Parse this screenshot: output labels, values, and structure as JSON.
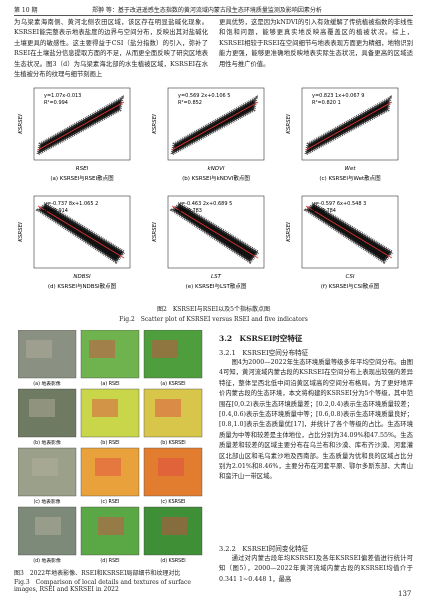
{
  "header": {
    "issue": "第 10 期",
    "title": "郑翀 等：基于改进遥感生态指数的黄河流域内蒙古段生态环境质量监测及影响因素分析"
  },
  "top": {
    "left": "为乌梁素海南侧、黄河北侧农田区域，该区存在明显盐碱化现象。KSRSEI能完整表示地表盐度的边界与空间分布，反映出其对盐碱化土壤更具的敏感性。这主要得益于CSI（盐分指数）的引入，弥补了RSEI在土壤盐分信息提取方面的不足，从而更全面反映了研究区地表生态状况。图3（d）为乌梁素海北部的水生植被区域，KSRSEI在水生植被分布的纹理与细节刻画上",
    "right": "更具优势，这是因为kNDVI的引入有效缓解了传统植被指数的非线性和饱和问题，能够更真实地反映高覆盖区的植被状况。综上，KSRSEI相较于RSEI在空间细节与地表表现方面更为精细，地物识别能力更强，能够更准确地反映地表实际生态状况，具备更高的区域适用性与推广价值。"
  },
  "figure2": {
    "y_label": "KSRSEI",
    "panels": [
      {
        "x_label": "RSEI",
        "equation": "y=1.07x-0.013",
        "r2": "R²=0.994",
        "caption": "(a) KSRSEI与RSEI散点图"
      },
      {
        "x_label": "kNDVI",
        "equation": "y=0.569 2x+0.106 5",
        "r2": "R²=0.852",
        "caption": "(b) KSRSEI与kNDVI散点图"
      },
      {
        "x_label": "Wet",
        "equation": "y=0.823 1x+0.067 9",
        "r2": "R²=0.820 1",
        "caption": "(c) KSRSEI与Wet散点图"
      },
      {
        "x_label": "NDBSI",
        "equation": "y=-0.737 8x+1.065 2",
        "r2": "R²=0.914",
        "caption": "(d) KSRSEI与NDBSI散点图"
      },
      {
        "x_label": "LST",
        "equation": "y=-0.463 2x+0.689 5",
        "r2": "R²=0.783",
        "caption": "(e) KSRSEI与LST散点图"
      },
      {
        "x_label": "CSI",
        "equation": "y=-0.597 6x+0.548 3",
        "r2": "R²=0.784",
        "caption": "(f) KSRSEI与CSI散点图"
      }
    ],
    "caption_cn": "图2　KSRSEI与RSEI以及5个指标散点图",
    "caption_en": "Fig.2　Scatter plot of KSRSEI versus RSEI and five indicators"
  },
  "figure3": {
    "labels": [
      [
        "(a) 地表影像",
        "(a) RSEI",
        "(a) KSRSEI"
      ],
      [
        "(b) 地表影像",
        "(b) RSEI",
        "(b) KSRSEI"
      ],
      [
        "(c) 地表影像",
        "(c) RSEI",
        "(c) KSRSEI"
      ],
      [
        "(d) 地表影像",
        "(d) RSEI",
        "(d) KSRSEI"
      ]
    ],
    "caption_cn": "图3　2022年地表影像、RSEI和KSRSEI局部细节和纹理对比",
    "caption_en": "Fig.3　Comparison of local details and textures of surface images, RSEI and KSRSEI in 2022"
  },
  "section": {
    "h2": "3.2　KSRSEI时空特征",
    "h3a": "3.2.1　KSRSEI空间分布特征",
    "p1": "图4为2000—2022年生态环境质量等级多年平均空间分布。由图4可知，黄河流域内蒙古段的KSRSEI在空间分布上表现出较强的差异特征，整体呈西北低中间沿黄区域高的空间分布格局。为了更好地评价内蒙古段的生态环境，本文将构建的KSRSEI分为5个等级，其中范围在[0,0.2)表示生态环境质量差；[0.2,0.4)表示生态环境质量较差；[0.4,0.6)表示生态环境质量中等；[0.6,0.8)表示生态环境质量良好；[0.8,1.0]表示生态质量优[17]，并统计了各个等级的占比。生态环境质量为中等和较差是主体地位，占比分别为34.09%和47.55%。生态质量差和较差的区域主要分布在乌兰布和沙漠、库布齐沙漠、河套灌区北部山区和毛乌素沙地及西南部。生态质量为优和良的区域占比分别为2.01%和8.46%，主要分布在河套平原、鄂尔多斯东部、大青山和蛮汗山一带区域。",
    "h3b": "3.2.2　KSRSEI时间变化特征",
    "p2": "通过对内蒙古段年均KSRSEI及各年KSRSEI偏差值进行统计可知（图5），2000—2022年黄河流域内蒙古段的KSRSEI均值介于0.341 1~0.448 1，最高"
  },
  "page_number": "137"
}
